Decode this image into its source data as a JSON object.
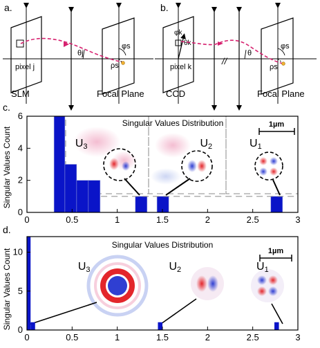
{
  "panel_a": {
    "label": "a.",
    "pixel_label": "pixel j",
    "theta_label": "θj",
    "phi_label": "φs",
    "rho_label": "ρs",
    "slm_label": "SLM",
    "plane_label": "Focal Plane"
  },
  "panel_b": {
    "label": "b.",
    "pixel_label": "pixel k",
    "phi_k_label": "φk",
    "theta_k_label": "θk",
    "theta_label": "θ",
    "phi_label": "φs",
    "rho_label": "ρs",
    "break_symbol": "//",
    "ccd_label": "CCD",
    "plane_label": "Focal Plane"
  },
  "colors": {
    "bar": "#0a14c8",
    "trajectory": "#d6206e",
    "mode_red": "#e3262b",
    "mode_blue": "#2f3fd2",
    "mode_pink": "#f0a7c2",
    "mode_lightblue": "#b7c4ee"
  },
  "chart_data": [
    {
      "panel_label": "c.",
      "type": "bar",
      "title": "Singular Values Distribution",
      "xlabel": "",
      "ylabel": "Singular Values Count",
      "xlim": [
        0,
        3
      ],
      "ylim": [
        0,
        6
      ],
      "xticks": [
        "0",
        "0.5",
        "1",
        "1.5",
        "2",
        "2.5",
        "3"
      ],
      "yticks": [
        "0",
        "2",
        "4",
        "6"
      ],
      "bins": [
        {
          "x0": 0.3,
          "x1": 0.42,
          "count": 6
        },
        {
          "x0": 0.42,
          "x1": 0.55,
          "count": 3
        },
        {
          "x0": 0.55,
          "x1": 0.68,
          "count": 2
        },
        {
          "x0": 0.68,
          "x1": 0.81,
          "count": 2
        },
        {
          "x0": 1.2,
          "x1": 1.33,
          "count": 1
        },
        {
          "x0": 1.44,
          "x1": 1.57,
          "count": 1
        },
        {
          "x0": 2.7,
          "x1": 2.83,
          "count": 1
        }
      ],
      "modes": [
        {
          "name": "U3",
          "x": 1.0
        },
        {
          "name": "U2",
          "x": 2.0
        },
        {
          "name": "U1",
          "x": 2.8
        }
      ],
      "scale_bar": "1µm"
    },
    {
      "panel_label": "d.",
      "type": "bar",
      "title": "Singular Values Distribution",
      "xlabel": "",
      "ylabel": "Singular Values Count",
      "xlim": [
        0,
        3
      ],
      "ylim": [
        0,
        12
      ],
      "xticks": [
        "0",
        "0.5",
        "1",
        "1.5",
        "2",
        "2.5",
        "3"
      ],
      "yticks": [
        "0",
        "5",
        "10"
      ],
      "bins": [
        {
          "x0": 0.0,
          "x1": 0.04,
          "count": 12
        },
        {
          "x0": 0.04,
          "x1": 0.09,
          "count": 1
        },
        {
          "x0": 1.45,
          "x1": 1.5,
          "count": 1
        },
        {
          "x0": 2.74,
          "x1": 2.79,
          "count": 1
        }
      ],
      "modes": [
        {
          "name": "U3",
          "x": 1.0
        },
        {
          "name": "U2",
          "x": 2.0
        },
        {
          "name": "U1",
          "x": 2.8
        }
      ],
      "scale_bar": "1µm"
    }
  ]
}
